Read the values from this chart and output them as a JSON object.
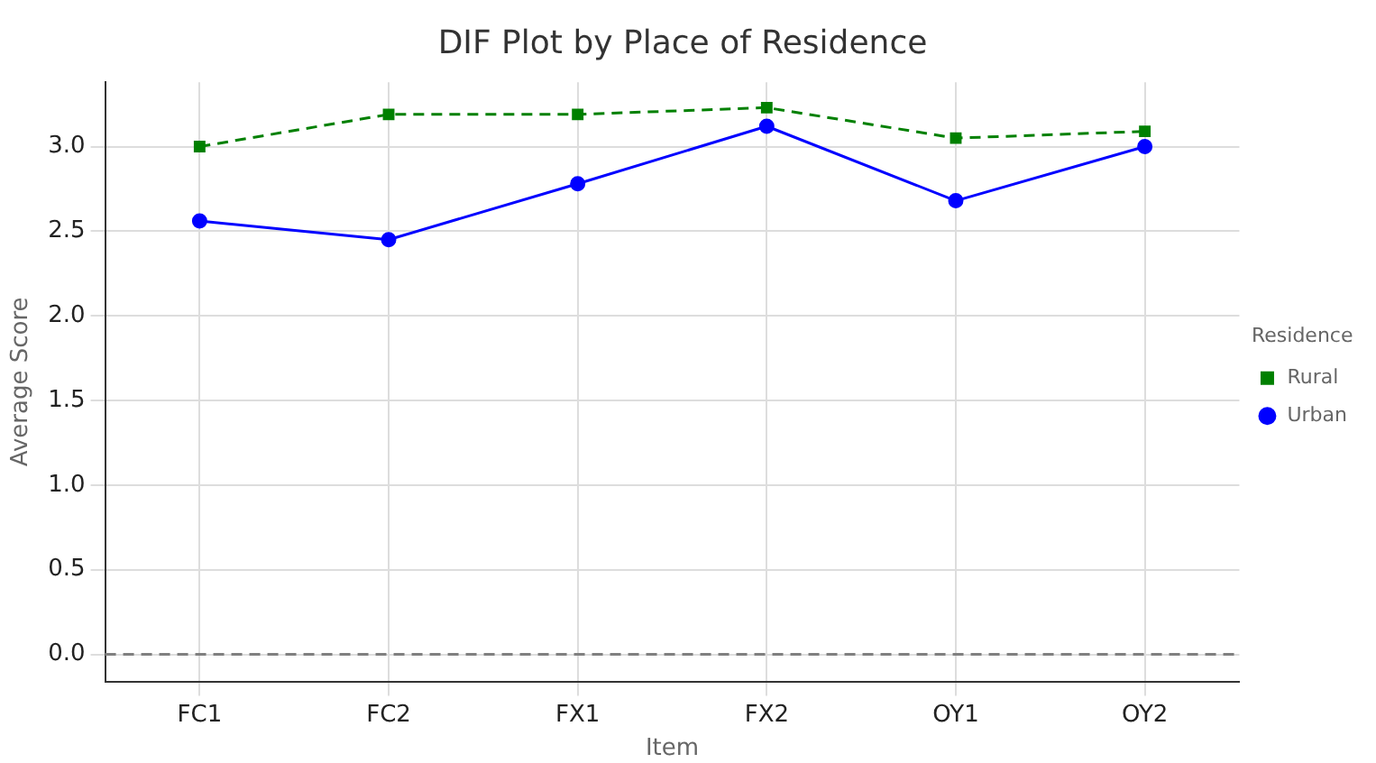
{
  "chart_data": {
    "type": "line",
    "title": "DIF Plot by Place of Residence",
    "xlabel": "Item",
    "ylabel": "Average Score",
    "legend_title": "Residence",
    "categories": [
      "FC1",
      "FC2",
      "FX1",
      "FX2",
      "OY1",
      "OY2"
    ],
    "series": [
      {
        "name": "Rural",
        "color": "#008000",
        "values": [
          3.0,
          3.19,
          3.19,
          3.23,
          3.05,
          3.09
        ],
        "marker": "square",
        "line_style": "dashed"
      },
      {
        "name": "Urban",
        "color": "#0000ff",
        "values": [
          2.56,
          2.45,
          2.78,
          3.12,
          2.68,
          3.0
        ],
        "marker": "circle",
        "line_style": "solid"
      }
    ],
    "ylim": [
      -0.16,
      3.38
    ],
    "yticks": [
      {
        "value": 0,
        "label": "0.0"
      },
      {
        "value": 0.5,
        "label": "0.5"
      },
      {
        "value": 1,
        "label": "1.0"
      },
      {
        "value": 1.5,
        "label": "1.5"
      },
      {
        "value": 2,
        "label": "2.0"
      },
      {
        "value": 2.5,
        "label": "2.5"
      },
      {
        "value": 3,
        "label": "3.0"
      }
    ],
    "ref_lines": [
      {
        "axis": "y",
        "value": 0,
        "color": "#808080",
        "line_style": "dashed"
      }
    ],
    "grid": true,
    "legend": "right"
  }
}
